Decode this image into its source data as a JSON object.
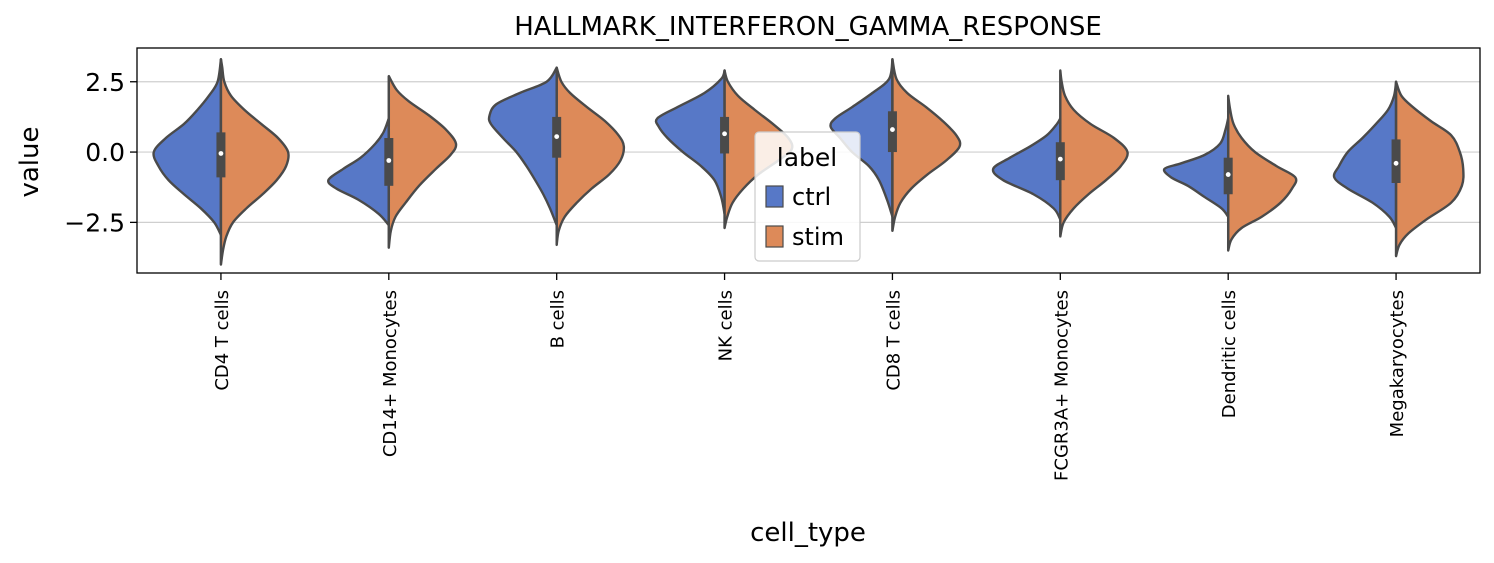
{
  "chart_data": {
    "type": "violin",
    "title": "HALLMARK_INTERFERON_GAMMA_RESPONSE",
    "xlabel": "cell_type",
    "ylabel": "value",
    "ylim": [
      -4.3,
      3.7
    ],
    "yticks": [
      2.5,
      0.0,
      -2.5
    ],
    "ytick_labels": [
      "2.5",
      "0.0",
      "−2.5"
    ],
    "grid": "horizontal",
    "split": true,
    "legend": {
      "title": "label",
      "position": "center",
      "entries": [
        "ctrl",
        "stim"
      ]
    },
    "colors": {
      "ctrl": "#5778c7",
      "stim": "#dd8a59",
      "outline": "#4a4a4a"
    },
    "categories": [
      "CD4 T cells",
      "CD14+ Monocytes",
      "B cells",
      "NK cells",
      "CD8 T cells",
      "FCGR3A+ Monocytes",
      "Dendritic cells",
      "Megakaryocytes"
    ],
    "box": [
      {
        "q1": -0.9,
        "median": -0.05,
        "q3": 0.7,
        "min": -4.0,
        "max": 3.3
      },
      {
        "q1": -1.2,
        "median": -0.3,
        "q3": 0.5,
        "min": -3.4,
        "max": 2.7
      },
      {
        "q1": -0.2,
        "median": 0.55,
        "q3": 1.25,
        "min": -3.3,
        "max": 3.0
      },
      {
        "q1": -0.05,
        "median": 0.65,
        "q3": 1.25,
        "min": -2.7,
        "max": 2.9
      },
      {
        "q1": 0.0,
        "median": 0.8,
        "q3": 1.45,
        "min": -2.8,
        "max": 3.3
      },
      {
        "q1": -1.0,
        "median": -0.25,
        "q3": 0.35,
        "min": -3.0,
        "max": 2.9
      },
      {
        "q1": -1.5,
        "median": -0.8,
        "q3": -0.2,
        "min": -3.5,
        "max": 2.0
      },
      {
        "q1": -1.1,
        "median": -0.4,
        "q3": 0.45,
        "min": -3.7,
        "max": 2.5
      }
    ],
    "series": [
      {
        "name": "ctrl",
        "density": [
          [
            [
              -2.95,
              0
            ],
            [
              -2.5,
              0.1
            ],
            [
              -2,
              0.3
            ],
            [
              -1.5,
              0.55
            ],
            [
              -1,
              0.78
            ],
            [
              -0.5,
              0.93
            ],
            [
              0,
              1
            ],
            [
              0.5,
              0.82
            ],
            [
              1,
              0.55
            ],
            [
              1.5,
              0.35
            ],
            [
              2,
              0.18
            ],
            [
              2.5,
              0.05
            ],
            [
              3.3,
              0
            ]
          ],
          [
            [
              -2.6,
              0
            ],
            [
              -2.2,
              0.15
            ],
            [
              -1.7,
              0.45
            ],
            [
              -1.3,
              0.78
            ],
            [
              -1,
              0.9
            ],
            [
              -0.6,
              0.68
            ],
            [
              -0.2,
              0.42
            ],
            [
              0.3,
              0.2
            ],
            [
              0.7,
              0.08
            ],
            [
              1.2,
              0
            ]
          ],
          [
            [
              -2.6,
              0
            ],
            [
              -2,
              0.1
            ],
            [
              -1.5,
              0.2
            ],
            [
              -1,
              0.32
            ],
            [
              -0.5,
              0.45
            ],
            [
              0,
              0.6
            ],
            [
              0.5,
              0.8
            ],
            [
              1,
              0.98
            ],
            [
              1.3,
              1
            ],
            [
              1.7,
              0.9
            ],
            [
              2.1,
              0.55
            ],
            [
              2.5,
              0.15
            ],
            [
              3,
              0
            ]
          ],
          [
            [
              -2.2,
              0
            ],
            [
              -1.6,
              0.05
            ],
            [
              -1,
              0.15
            ],
            [
              -0.5,
              0.35
            ],
            [
              0,
              0.62
            ],
            [
              0.5,
              0.85
            ],
            [
              0.9,
              0.98
            ],
            [
              1.2,
              1
            ],
            [
              1.6,
              0.7
            ],
            [
              2.1,
              0.3
            ],
            [
              2.6,
              0.05
            ],
            [
              2.9,
              0
            ]
          ],
          [
            [
              -2.3,
              0
            ],
            [
              -1.7,
              0.08
            ],
            [
              -1,
              0.2
            ],
            [
              -0.5,
              0.35
            ],
            [
              0,
              0.6
            ],
            [
              0.5,
              0.78
            ],
            [
              0.9,
              0.92
            ],
            [
              1.2,
              0.85
            ],
            [
              1.6,
              0.6
            ],
            [
              2.1,
              0.3
            ],
            [
              2.6,
              0.05
            ],
            [
              3.3,
              0
            ]
          ],
          [
            [
              -2.4,
              0
            ],
            [
              -2,
              0.1
            ],
            [
              -1.5,
              0.4
            ],
            [
              -1,
              0.85
            ],
            [
              -0.6,
              1
            ],
            [
              -0.2,
              0.75
            ],
            [
              0.2,
              0.45
            ],
            [
              0.6,
              0.2
            ],
            [
              1,
              0.05
            ],
            [
              1.2,
              0
            ]
          ],
          [
            [
              -2.3,
              0
            ],
            [
              -2,
              0.1
            ],
            [
              -1.6,
              0.35
            ],
            [
              -1.2,
              0.6
            ],
            [
              -0.9,
              0.85
            ],
            [
              -0.6,
              0.95
            ],
            [
              -0.4,
              0.7
            ],
            [
              -0.1,
              0.35
            ],
            [
              0.3,
              0.12
            ],
            [
              0.8,
              0.04
            ],
            [
              1.2,
              0
            ]
          ],
          [
            [
              -2.7,
              0
            ],
            [
              -2.3,
              0.1
            ],
            [
              -1.8,
              0.35
            ],
            [
              -1.3,
              0.72
            ],
            [
              -0.9,
              0.92
            ],
            [
              -0.5,
              0.85
            ],
            [
              0,
              0.72
            ],
            [
              0.5,
              0.5
            ],
            [
              1,
              0.3
            ],
            [
              1.5,
              0.12
            ],
            [
              2,
              0.03
            ],
            [
              2.5,
              0
            ]
          ]
        ]
      },
      {
        "name": "stim",
        "density": [
          [
            [
              -4,
              0
            ],
            [
              -3.5,
              0.03
            ],
            [
              -3,
              0.08
            ],
            [
              -2.5,
              0.18
            ],
            [
              -2,
              0.38
            ],
            [
              -1.5,
              0.62
            ],
            [
              -1,
              0.83
            ],
            [
              -0.5,
              0.97
            ],
            [
              0,
              1
            ],
            [
              0.5,
              0.85
            ],
            [
              1,
              0.6
            ],
            [
              1.5,
              0.35
            ],
            [
              2,
              0.15
            ],
            [
              2.5,
              0.05
            ],
            [
              3,
              0.02
            ],
            [
              3.3,
              0
            ]
          ],
          [
            [
              -3.4,
              0
            ],
            [
              -2.8,
              0.03
            ],
            [
              -2.3,
              0.1
            ],
            [
              -1.8,
              0.25
            ],
            [
              -1.2,
              0.45
            ],
            [
              -0.6,
              0.7
            ],
            [
              -0.1,
              0.92
            ],
            [
              0.3,
              1
            ],
            [
              0.8,
              0.85
            ],
            [
              1.3,
              0.6
            ],
            [
              1.8,
              0.3
            ],
            [
              2.2,
              0.12
            ],
            [
              2.7,
              0
            ]
          ],
          [
            [
              -3.3,
              0
            ],
            [
              -2.8,
              0.03
            ],
            [
              -2.3,
              0.12
            ],
            [
              -1.8,
              0.3
            ],
            [
              -1.3,
              0.52
            ],
            [
              -0.8,
              0.78
            ],
            [
              -0.3,
              0.95
            ],
            [
              0.2,
              1
            ],
            [
              0.6,
              0.92
            ],
            [
              1.1,
              0.72
            ],
            [
              1.6,
              0.45
            ],
            [
              2.1,
              0.2
            ],
            [
              2.5,
              0.07
            ],
            [
              3,
              0
            ]
          ],
          [
            [
              -2.7,
              0
            ],
            [
              -2.3,
              0.04
            ],
            [
              -1.8,
              0.12
            ],
            [
              -1.3,
              0.28
            ],
            [
              -0.8,
              0.5
            ],
            [
              -0.3,
              0.8
            ],
            [
              0.1,
              1
            ],
            [
              0.5,
              0.95
            ],
            [
              1,
              0.72
            ],
            [
              1.5,
              0.45
            ],
            [
              2,
              0.2
            ],
            [
              2.5,
              0.05
            ],
            [
              2.9,
              0
            ]
          ],
          [
            [
              -2.8,
              0
            ],
            [
              -2.3,
              0.04
            ],
            [
              -1.8,
              0.12
            ],
            [
              -1.3,
              0.28
            ],
            [
              -0.8,
              0.52
            ],
            [
              -0.3,
              0.8
            ],
            [
              0.2,
              1
            ],
            [
              0.6,
              0.95
            ],
            [
              1.1,
              0.75
            ],
            [
              1.6,
              0.5
            ],
            [
              2.1,
              0.22
            ],
            [
              2.6,
              0.06
            ],
            [
              3.3,
              0
            ]
          ],
          [
            [
              -3,
              0
            ],
            [
              -2.5,
              0.05
            ],
            [
              -2,
              0.2
            ],
            [
              -1.5,
              0.42
            ],
            [
              -1,
              0.68
            ],
            [
              -0.5,
              0.9
            ],
            [
              0,
              1
            ],
            [
              0.5,
              0.8
            ],
            [
              1,
              0.45
            ],
            [
              1.5,
              0.2
            ],
            [
              2,
              0.07
            ],
            [
              2.5,
              0.02
            ],
            [
              2.9,
              0
            ]
          ],
          [
            [
              -3.5,
              0
            ],
            [
              -3.1,
              0.05
            ],
            [
              -2.7,
              0.2
            ],
            [
              -2.3,
              0.5
            ],
            [
              -1.8,
              0.78
            ],
            [
              -1.3,
              0.95
            ],
            [
              -0.9,
              1
            ],
            [
              -0.5,
              0.72
            ],
            [
              0,
              0.4
            ],
            [
              0.5,
              0.2
            ],
            [
              1,
              0.08
            ],
            [
              1.5,
              0.03
            ],
            [
              2,
              0
            ]
          ],
          [
            [
              -3.7,
              0
            ],
            [
              -3.3,
              0.05
            ],
            [
              -2.9,
              0.18
            ],
            [
              -2.4,
              0.45
            ],
            [
              -1.8,
              0.82
            ],
            [
              -1.2,
              0.98
            ],
            [
              -0.6,
              1
            ],
            [
              0,
              0.95
            ],
            [
              0.6,
              0.82
            ],
            [
              1.1,
              0.52
            ],
            [
              1.6,
              0.25
            ],
            [
              2,
              0.08
            ],
            [
              2.5,
              0
            ]
          ]
        ]
      }
    ]
  }
}
